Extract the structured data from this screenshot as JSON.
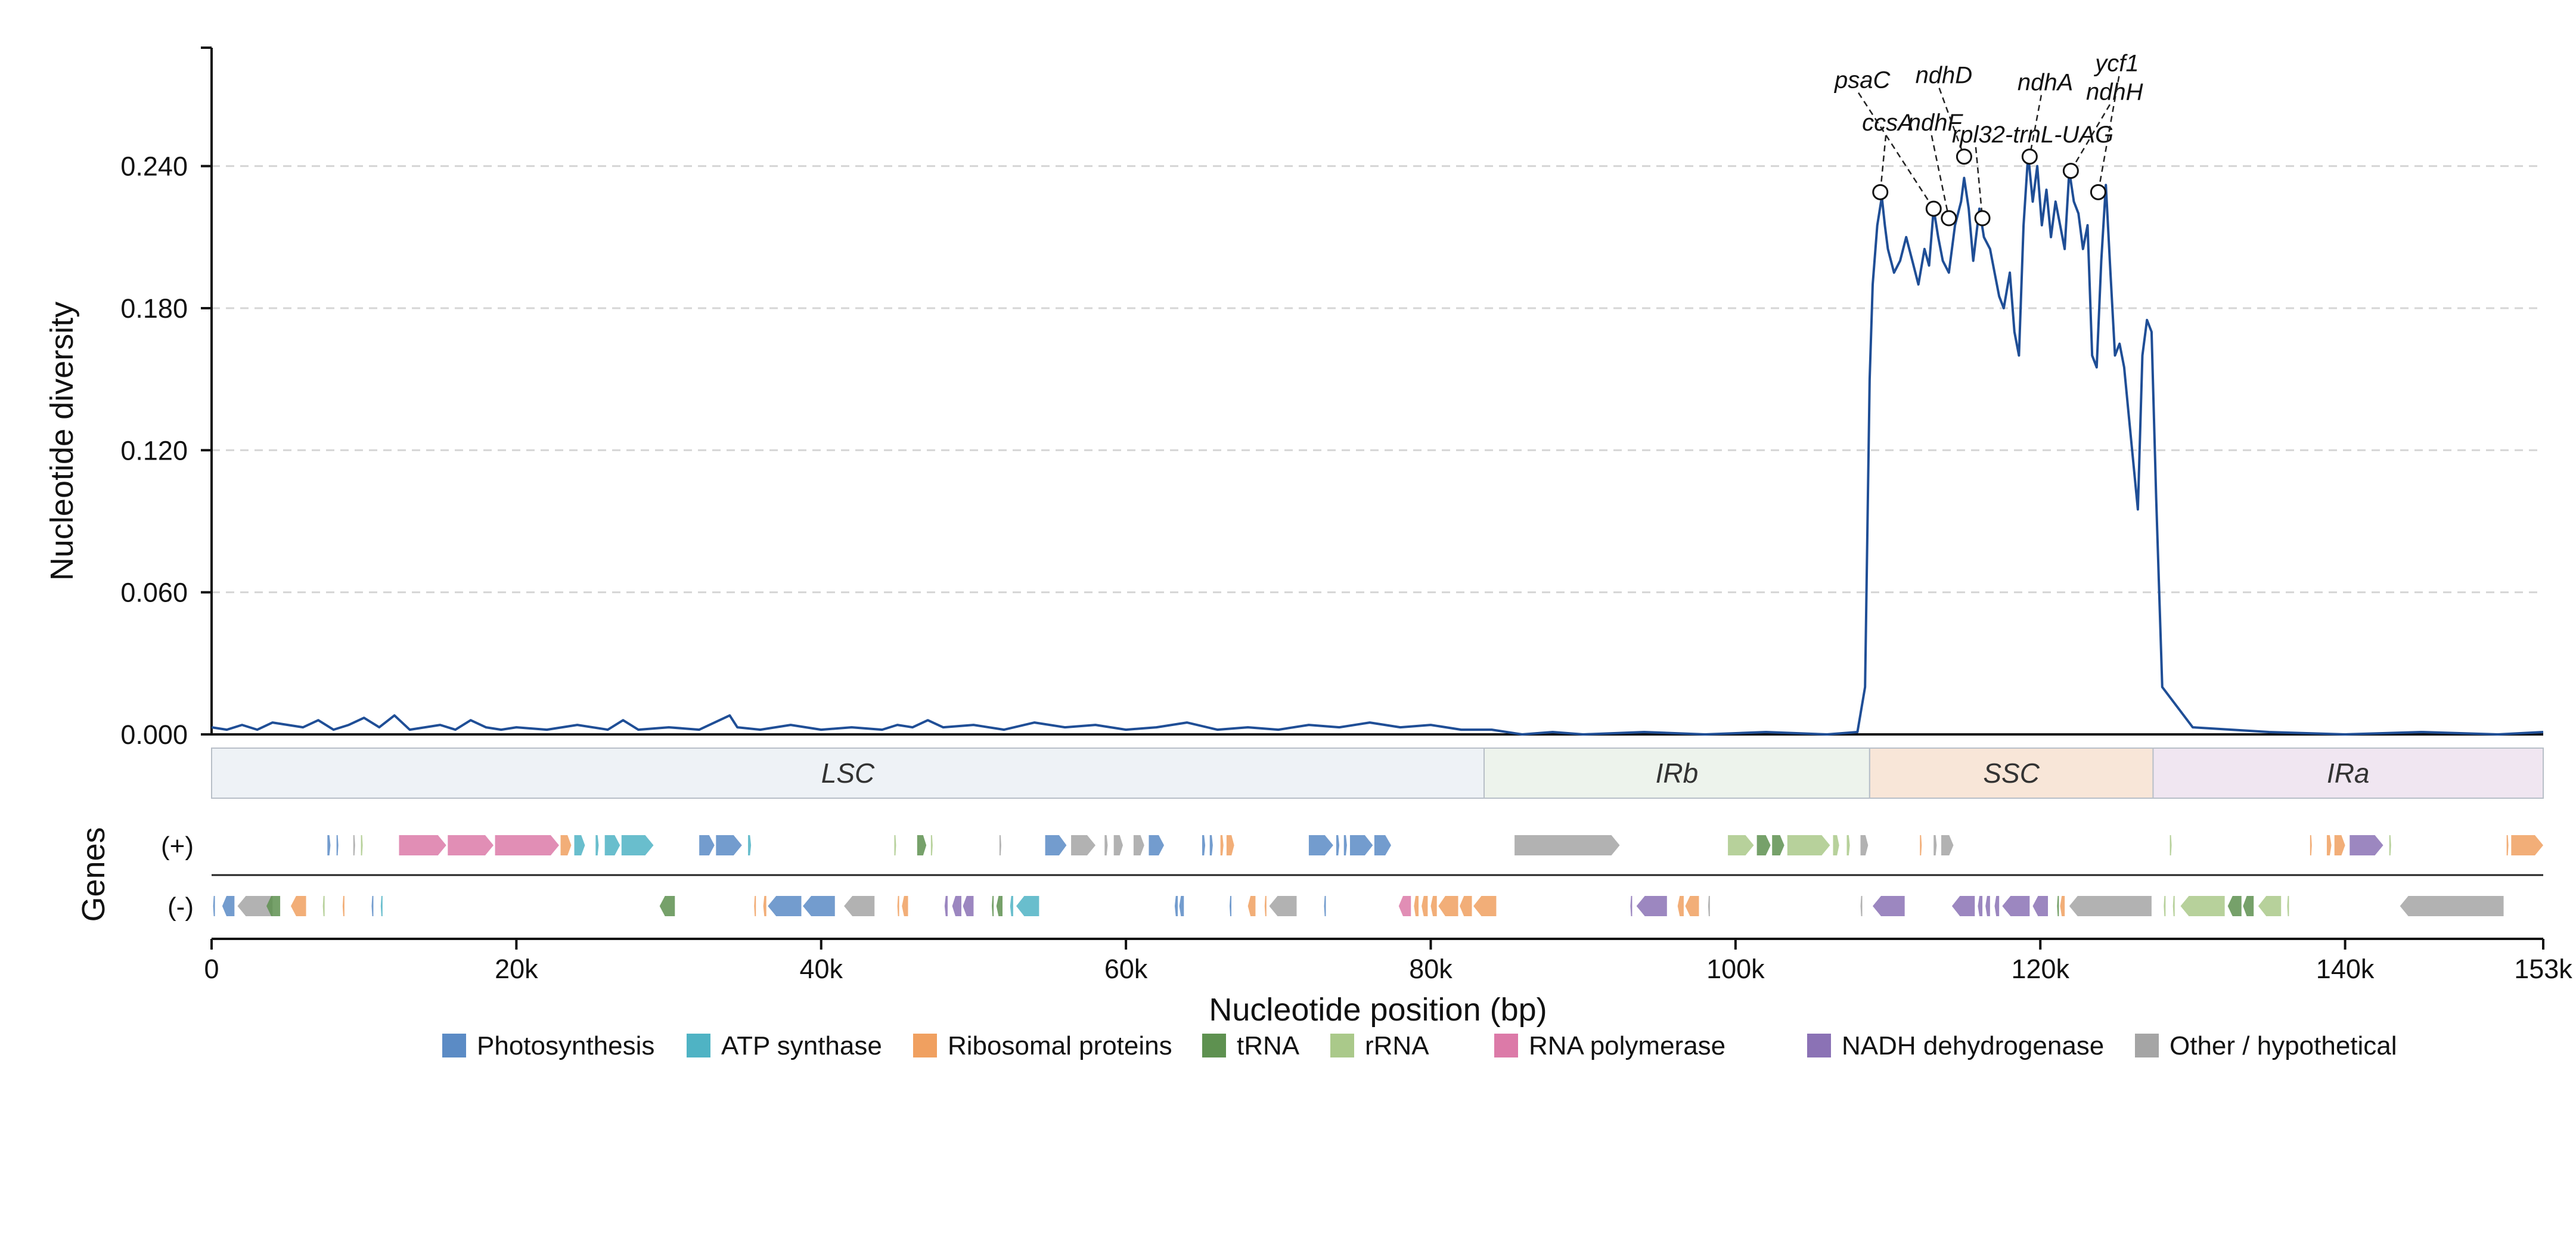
{
  "chart_data": {
    "type": "line",
    "title": "",
    "xlabel": "Nucleotide position (bp)",
    "ylabel": "Nucleotide diversity",
    "genes_label": "Genes",
    "xlim": [
      0,
      153000
    ],
    "ylim": [
      0,
      0.29
    ],
    "x_ticks": [
      0,
      20000,
      40000,
      60000,
      80000,
      100000,
      120000,
      140000,
      153000
    ],
    "x_tick_labels": [
      "0",
      "20k",
      "40k",
      "60k",
      "80k",
      "100k",
      "120k",
      "140k",
      "153k"
    ],
    "y_ticks": [
      0,
      0.06,
      0.12,
      0.18,
      0.24
    ],
    "y_tick_labels": [
      "0.000",
      "0.060",
      "0.120",
      "0.180",
      "0.240"
    ],
    "grid": "horizontal-dashed",
    "line_color": "#1f4e96",
    "series": [
      {
        "x": [
          0,
          1000,
          2000,
          3000,
          4000,
          5000,
          6000,
          7000,
          8000,
          9000,
          10000,
          11000,
          12000,
          13000,
          14000,
          15000,
          16000,
          17000,
          18000,
          19000,
          20000,
          22000,
          24000,
          26000,
          27000,
          28000,
          30000,
          32000,
          34000,
          34500,
          36000,
          38000,
          40000,
          42000,
          44000,
          45000,
          46000,
          47000,
          48000,
          50000,
          52000,
          54000,
          56000,
          58000,
          60000,
          62000,
          64000,
          66000,
          68000,
          70000,
          72000,
          74000,
          76000,
          78000,
          80000,
          82000,
          84000,
          86000,
          88000,
          90000,
          94000,
          98000,
          102000,
          106000,
          108000,
          108500,
          108800,
          109000,
          109300,
          109600,
          109800,
          110000,
          110400,
          110800,
          111200,
          111600,
          112000,
          112400,
          112700,
          113000,
          113300,
          113600,
          114000,
          114400,
          114800,
          115000,
          115300,
          115600,
          116000,
          116300,
          116700,
          117000,
          117300,
          117600,
          118000,
          118300,
          118600,
          118900,
          119200,
          119500,
          119800,
          120100,
          120400,
          120700,
          121000,
          121300,
          121600,
          121900,
          122200,
          122500,
          122800,
          123100,
          123400,
          123700,
          124000,
          124300,
          124600,
          124900,
          125200,
          125500,
          125800,
          126100,
          126400,
          126700,
          127000,
          127300,
          127600,
          128000,
          130000,
          135000,
          140000,
          145000,
          150000,
          153000
        ],
        "y": [
          0.003,
          0.002,
          0.004,
          0.002,
          0.005,
          0.004,
          0.003,
          0.006,
          0.002,
          0.004,
          0.007,
          0.003,
          0.008,
          0.002,
          0.003,
          0.004,
          0.002,
          0.006,
          0.003,
          0.002,
          0.003,
          0.002,
          0.004,
          0.002,
          0.006,
          0.002,
          0.003,
          0.002,
          0.008,
          0.003,
          0.002,
          0.004,
          0.002,
          0.003,
          0.002,
          0.004,
          0.003,
          0.006,
          0.003,
          0.004,
          0.002,
          0.005,
          0.003,
          0.004,
          0.002,
          0.003,
          0.005,
          0.002,
          0.003,
          0.002,
          0.004,
          0.003,
          0.005,
          0.003,
          0.004,
          0.002,
          0.002,
          0.0,
          0.001,
          0.0,
          0.001,
          0.0,
          0.001,
          0.0,
          0.001,
          0.02,
          0.15,
          0.19,
          0.215,
          0.227,
          0.215,
          0.205,
          0.195,
          0.2,
          0.21,
          0.2,
          0.19,
          0.205,
          0.198,
          0.222,
          0.21,
          0.2,
          0.195,
          0.215,
          0.225,
          0.235,
          0.222,
          0.2,
          0.222,
          0.21,
          0.205,
          0.195,
          0.185,
          0.18,
          0.195,
          0.17,
          0.16,
          0.215,
          0.245,
          0.225,
          0.24,
          0.215,
          0.23,
          0.21,
          0.225,
          0.215,
          0.205,
          0.238,
          0.225,
          0.22,
          0.205,
          0.215,
          0.16,
          0.155,
          0.2,
          0.232,
          0.195,
          0.16,
          0.165,
          0.155,
          0.135,
          0.115,
          0.095,
          0.16,
          0.175,
          0.17,
          0.1,
          0.02,
          0.003,
          0.001,
          0.0,
          0.001,
          0.0,
          0.001
        ]
      }
    ],
    "annotations": [
      {
        "label": "ccsA",
        "x": 109500,
        "y": 0.229,
        "label_x": 108300,
        "label_y": 0.255
      },
      {
        "label": "psaC",
        "x": 113000,
        "y": 0.222,
        "label_x": 106500,
        "label_y": 0.273
      },
      {
        "label": "ndhF",
        "x": 114000,
        "y": 0.218,
        "label_x": 111300,
        "label_y": 0.255
      },
      {
        "label": "ndhD",
        "x": 115000,
        "y": 0.244,
        "label_x": 111800,
        "label_y": 0.275
      },
      {
        "label": "rpl32-trnL-UAG",
        "x": 116200,
        "y": 0.218,
        "label_x": 114200,
        "label_y": 0.25
      },
      {
        "label": "ndhA",
        "x": 119300,
        "y": 0.244,
        "label_x": 118500,
        "label_y": 0.272
      },
      {
        "label": "ndhH",
        "x": 122000,
        "y": 0.238,
        "label_x": 123000,
        "label_y": 0.268
      },
      {
        "label": "ycf1",
        "x": 123800,
        "y": 0.229,
        "label_x": 123600,
        "label_y": 0.28
      }
    ],
    "regions": [
      {
        "label": "LSC",
        "start": 0,
        "end": 83500,
        "color": "#eef2f6"
      },
      {
        "label": "IRb",
        "start": 83500,
        "end": 108800,
        "color": "#edf3ec"
      },
      {
        "label": "SSC",
        "start": 108800,
        "end": 127400,
        "color": "#f8e6d8"
      },
      {
        "label": "IRa",
        "start": 127400,
        "end": 153000,
        "color": "#f0e6f1"
      }
    ],
    "strands": [
      {
        "label": "(+)",
        "key": "plus"
      },
      {
        "label": "(-)",
        "key": "minus"
      }
    ],
    "legend": [
      {
        "label": "Photosynthesis",
        "color": "#5b8bc5"
      },
      {
        "label": "ATP synthase",
        "color": "#4fb3c4"
      },
      {
        "label": "Ribosomal proteins",
        "color": "#f0a060"
      },
      {
        "label": "tRNA",
        "color": "#5e9150"
      },
      {
        "label": "rRNA",
        "color": "#aac98a"
      },
      {
        "label": "RNA polymerase",
        "color": "#dc7aa8"
      },
      {
        "label": "NADH dehydrogenase",
        "color": "#8b72b5"
      },
      {
        "label": "Other / hypothetical",
        "color": "#a5a5a5"
      }
    ],
    "legend_placement": "bottom-center",
    "genes": {
      "plus": [
        {
          "s": 7600,
          "e": 7800,
          "c": 0
        },
        {
          "s": 8200,
          "e": 8300,
          "c": 0
        },
        {
          "s": 9300,
          "e": 9400,
          "c": 7
        },
        {
          "s": 9800,
          "e": 9900,
          "c": 4
        },
        {
          "s": 12300,
          "e": 15400,
          "c": 5
        },
        {
          "s": 15500,
          "e": 18500,
          "c": 5
        },
        {
          "s": 18600,
          "e": 22800,
          "c": 5
        },
        {
          "s": 22900,
          "e": 23600,
          "c": 2
        },
        {
          "s": 23800,
          "e": 24500,
          "c": 1
        },
        {
          "s": 25200,
          "e": 25400,
          "c": 1
        },
        {
          "s": 25800,
          "e": 26800,
          "c": 1
        },
        {
          "s": 26900,
          "e": 29000,
          "c": 1
        },
        {
          "s": 32000,
          "e": 33000,
          "c": 0
        },
        {
          "s": 33100,
          "e": 34800,
          "c": 0
        },
        {
          "s": 35200,
          "e": 35400,
          "c": 1
        },
        {
          "s": 44800,
          "e": 44900,
          "c": 4
        },
        {
          "s": 46300,
          "e": 46900,
          "c": 3
        },
        {
          "s": 47200,
          "e": 47300,
          "c": 4
        },
        {
          "s": 51700,
          "e": 51800,
          "c": 7
        },
        {
          "s": 54700,
          "e": 56100,
          "c": 0
        },
        {
          "s": 56400,
          "e": 58000,
          "c": 7
        },
        {
          "s": 58600,
          "e": 58800,
          "c": 7
        },
        {
          "s": 59200,
          "e": 59800,
          "c": 7
        },
        {
          "s": 60500,
          "e": 61200,
          "c": 7
        },
        {
          "s": 61500,
          "e": 62500,
          "c": 0
        },
        {
          "s": 65000,
          "e": 65200,
          "c": 0
        },
        {
          "s": 65500,
          "e": 65700,
          "c": 0
        },
        {
          "s": 66200,
          "e": 66400,
          "c": 2
        },
        {
          "s": 66600,
          "e": 67100,
          "c": 2
        },
        {
          "s": 72000,
          "e": 73600,
          "c": 0
        },
        {
          "s": 73800,
          "e": 74000,
          "c": 0
        },
        {
          "s": 74300,
          "e": 74500,
          "c": 0
        },
        {
          "s": 74700,
          "e": 76200,
          "c": 0
        },
        {
          "s": 76300,
          "e": 77400,
          "c": 0
        },
        {
          "s": 85500,
          "e": 92400,
          "c": 7
        },
        {
          "s": 99500,
          "e": 101200,
          "c": 4
        },
        {
          "s": 101400,
          "e": 102300,
          "c": 3
        },
        {
          "s": 102400,
          "e": 103200,
          "c": 3
        },
        {
          "s": 103400,
          "e": 106200,
          "c": 4
        },
        {
          "s": 106400,
          "e": 106800,
          "c": 4
        },
        {
          "s": 107300,
          "e": 107500,
          "c": 4
        },
        {
          "s": 108200,
          "e": 108700,
          "c": 7
        },
        {
          "s": 112100,
          "e": 112200,
          "c": 2
        },
        {
          "s": 113000,
          "e": 113200,
          "c": 7
        },
        {
          "s": 113500,
          "e": 114300,
          "c": 7
        },
        {
          "s": 128500,
          "e": 128600,
          "c": 4
        },
        {
          "s": 137700,
          "e": 137800,
          "c": 2
        },
        {
          "s": 138800,
          "e": 139100,
          "c": 2
        },
        {
          "s": 139300,
          "e": 140000,
          "c": 2
        },
        {
          "s": 140300,
          "e": 142500,
          "c": 6
        },
        {
          "s": 142900,
          "e": 143000,
          "c": 4
        },
        {
          "s": 150600,
          "e": 150700,
          "c": 2
        },
        {
          "s": 150900,
          "e": 153000,
          "c": 2
        }
      ],
      "minus": [
        {
          "s": 100,
          "e": 200,
          "c": 0
        },
        {
          "s": 700,
          "e": 1500,
          "c": 0
        },
        {
          "s": 1700,
          "e": 4000,
          "c": 7
        },
        {
          "s": 3600,
          "e": 4500,
          "c": 3
        },
        {
          "s": 5200,
          "e": 6200,
          "c": 2
        },
        {
          "s": 7300,
          "e": 7400,
          "c": 4
        },
        {
          "s": 8600,
          "e": 8700,
          "c": 2
        },
        {
          "s": 10500,
          "e": 10600,
          "c": 0
        },
        {
          "s": 11100,
          "e": 11200,
          "c": 1
        },
        {
          "s": 29400,
          "e": 30400,
          "c": 3
        },
        {
          "s": 35600,
          "e": 35700,
          "c": 2
        },
        {
          "s": 36200,
          "e": 36400,
          "c": 2
        },
        {
          "s": 36500,
          "e": 38700,
          "c": 0
        },
        {
          "s": 38800,
          "e": 40900,
          "c": 0
        },
        {
          "s": 41500,
          "e": 43500,
          "c": 7
        },
        {
          "s": 45000,
          "e": 45100,
          "c": 2
        },
        {
          "s": 45300,
          "e": 45700,
          "c": 2
        },
        {
          "s": 48100,
          "e": 48300,
          "c": 6
        },
        {
          "s": 48600,
          "e": 49200,
          "c": 6
        },
        {
          "s": 49300,
          "e": 50000,
          "c": 6
        },
        {
          "s": 51200,
          "e": 51300,
          "c": 3
        },
        {
          "s": 51500,
          "e": 51900,
          "c": 3
        },
        {
          "s": 52400,
          "e": 52600,
          "c": 1
        },
        {
          "s": 52800,
          "e": 54300,
          "c": 1
        },
        {
          "s": 63200,
          "e": 63400,
          "c": 0
        },
        {
          "s": 63500,
          "e": 63800,
          "c": 0
        },
        {
          "s": 66800,
          "e": 66900,
          "c": 0
        },
        {
          "s": 68000,
          "e": 68500,
          "c": 2
        },
        {
          "s": 69100,
          "e": 69200,
          "c": 2
        },
        {
          "s": 69400,
          "e": 71200,
          "c": 7
        },
        {
          "s": 73000,
          "e": 73100,
          "c": 0
        },
        {
          "s": 77900,
          "e": 78700,
          "c": 5
        },
        {
          "s": 78900,
          "e": 79200,
          "c": 2
        },
        {
          "s": 79400,
          "e": 79800,
          "c": 2
        },
        {
          "s": 80000,
          "e": 80400,
          "c": 2
        },
        {
          "s": 80500,
          "e": 81800,
          "c": 2
        },
        {
          "s": 81900,
          "e": 82700,
          "c": 2
        },
        {
          "s": 82800,
          "e": 84300,
          "c": 2
        },
        {
          "s": 93100,
          "e": 93200,
          "c": 6
        },
        {
          "s": 93500,
          "e": 95500,
          "c": 6
        },
        {
          "s": 96200,
          "e": 96600,
          "c": 2
        },
        {
          "s": 96700,
          "e": 97600,
          "c": 2
        },
        {
          "s": 98200,
          "e": 98300,
          "c": 7
        },
        {
          "s": 108200,
          "e": 108300,
          "c": 7
        },
        {
          "s": 109000,
          "e": 111100,
          "c": 6
        },
        {
          "s": 114200,
          "e": 115700,
          "c": 6
        },
        {
          "s": 115900,
          "e": 116200,
          "c": 6
        },
        {
          "s": 116400,
          "e": 116700,
          "c": 6
        },
        {
          "s": 117000,
          "e": 117300,
          "c": 6
        },
        {
          "s": 117500,
          "e": 119300,
          "c": 6
        },
        {
          "s": 119500,
          "e": 120500,
          "c": 6
        },
        {
          "s": 121100,
          "e": 121200,
          "c": 3
        },
        {
          "s": 121300,
          "e": 121600,
          "c": 2
        },
        {
          "s": 121900,
          "e": 127300,
          "c": 7
        },
        {
          "s": 128100,
          "e": 128200,
          "c": 4
        },
        {
          "s": 128700,
          "e": 128800,
          "c": 4
        },
        {
          "s": 129200,
          "e": 132100,
          "c": 4
        },
        {
          "s": 132300,
          "e": 133200,
          "c": 3
        },
        {
          "s": 133300,
          "e": 134000,
          "c": 3
        },
        {
          "s": 134300,
          "e": 135800,
          "c": 4
        },
        {
          "s": 136200,
          "e": 136300,
          "c": 4
        },
        {
          "s": 143600,
          "e": 150400,
          "c": 7
        }
      ]
    }
  }
}
